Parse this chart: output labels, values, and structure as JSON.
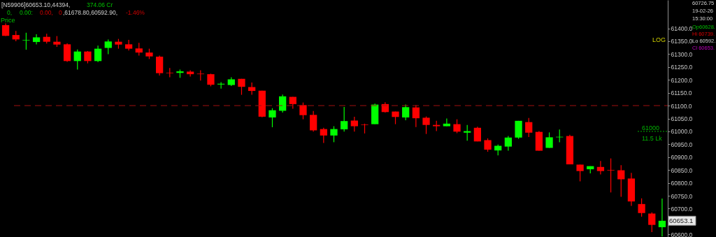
{
  "chart_data": {
    "type": "candlestick",
    "ylabel": "Price",
    "categories": [
      null,
      null,
      null,
      null,
      null,
      null,
      null,
      null,
      null,
      null,
      null,
      null,
      null,
      null,
      null,
      null,
      null,
      null,
      null,
      null,
      null,
      null,
      null,
      null,
      null,
      null,
      null,
      null,
      null,
      null,
      null,
      null,
      null,
      null,
      null,
      null,
      null,
      null,
      null,
      null,
      null,
      null,
      null,
      null,
      null,
      null,
      null,
      null,
      null,
      null,
      null,
      null,
      null,
      null,
      null,
      null,
      null,
      null,
      null,
      null,
      null,
      null,
      null,
      null,
      null
    ],
    "ohlc": [
      [
        61412,
        61419,
        61370,
        61371
      ],
      [
        61374,
        61390,
        61350,
        61357
      ],
      [
        61353,
        61383,
        61317,
        61355
      ],
      [
        61347,
        61377,
        61338,
        61365
      ],
      [
        61367,
        61379,
        61341,
        61348
      ],
      [
        61348,
        61370,
        61328,
        61337
      ],
      [
        61338,
        61342,
        61270,
        61273
      ],
      [
        61273,
        61318,
        61240,
        61310
      ],
      [
        61310,
        61312,
        61264,
        61273
      ],
      [
        61273,
        61333,
        61269,
        61321
      ],
      [
        61324,
        61357,
        61300,
        61349
      ],
      [
        61348,
        61359,
        61321,
        61337
      ],
      [
        61338,
        61355,
        61314,
        61321
      ],
      [
        61322,
        61344,
        61294,
        61306
      ],
      [
        61306,
        61321,
        61281,
        61291
      ],
      [
        61290,
        61294,
        61217,
        61226
      ],
      [
        61228,
        61246,
        61210,
        61226
      ],
      [
        61227,
        61240,
        61208,
        61233
      ],
      [
        61232,
        61237,
        61213,
        61222
      ],
      [
        61224,
        61237,
        61197,
        61222
      ],
      [
        61222,
        61224,
        61175,
        61181
      ],
      [
        61182,
        61191,
        61166,
        61185
      ],
      [
        61180,
        61210,
        61176,
        61202
      ],
      [
        61204,
        61204,
        61142,
        61173
      ],
      [
        61172,
        61190,
        61142,
        61157
      ],
      [
        61158,
        61158,
        61055,
        61057
      ],
      [
        61054,
        61090,
        61016,
        61082
      ],
      [
        61080,
        61143,
        61073,
        61136
      ],
      [
        61134,
        61134,
        61088,
        61106
      ],
      [
        61102,
        61112,
        61047,
        61063
      ],
      [
        61064,
        61079,
        60999,
        61004
      ],
      [
        61009,
        61014,
        60955,
        60984
      ],
      [
        60984,
        61020,
        60958,
        61009
      ],
      [
        61008,
        61095,
        60999,
        61040
      ],
      [
        61042,
        61057,
        60999,
        61020
      ],
      [
        61027,
        61030,
        60992,
        61025
      ],
      [
        61028,
        61108,
        61028,
        61104
      ],
      [
        61106,
        61113,
        61073,
        61075
      ],
      [
        61077,
        61077,
        61028,
        61056
      ],
      [
        61054,
        61104,
        61043,
        61094
      ],
      [
        61093,
        61102,
        61017,
        61051
      ],
      [
        61053,
        61058,
        60990,
        61025
      ],
      [
        61025,
        61041,
        61001,
        61020
      ],
      [
        61020,
        61050,
        61020,
        61030
      ],
      [
        61028,
        61047,
        60993,
        60999
      ],
      [
        60995,
        61025,
        60964,
        61001
      ],
      [
        61014,
        61018,
        60961,
        60961
      ],
      [
        60966,
        60973,
        60921,
        60929
      ],
      [
        60926,
        60949,
        60907,
        60944
      ],
      [
        60941,
        60982,
        60925,
        60976
      ],
      [
        60976,
        61041,
        60971,
        61041
      ],
      [
        61036,
        61052,
        60978,
        60995
      ],
      [
        60998,
        61001,
        60925,
        60925
      ],
      [
        60936,
        60996,
        60936,
        60977
      ],
      [
        60977,
        61007,
        60958,
        60979
      ],
      [
        60982,
        60987,
        60872,
        60872
      ],
      [
        60871,
        60871,
        60806,
        60846
      ],
      [
        60853,
        60865,
        60837,
        60865
      ],
      [
        60862,
        60885,
        60833,
        60846
      ],
      [
        60850,
        60895,
        60763,
        60848
      ],
      [
        60849,
        60869,
        60746,
        60814
      ],
      [
        60817,
        60839,
        60711,
        60728
      ],
      [
        60718,
        60740,
        60669,
        60683
      ],
      [
        60681,
        60686,
        60609,
        60637
      ],
      [
        60628,
        60739,
        60592,
        60653
      ]
    ],
    "colors": [
      "#ff0000",
      "#ff0000",
      "#00ff00",
      "#00ff00",
      "#ff0000",
      "#ff0000",
      "#ff0000",
      "#00ff00",
      "#ff0000",
      "#00ff00",
      "#00ff00",
      "#ff0000",
      "#ff0000",
      "#ff0000",
      "#ff0000",
      "#ff0000",
      "#ff0000",
      "#00ff00",
      "#ff0000",
      "#ff0000",
      "#ff0000",
      "#00ff00",
      "#00ff00",
      "#ff0000",
      "#ff0000",
      "#ff0000",
      "#00ff00",
      "#00ff00",
      "#ff0000",
      "#ff0000",
      "#ff0000",
      "#ff0000",
      "#00ff00",
      "#00ff00",
      "#ff0000",
      "#ff0000",
      "#00ff00",
      "#ff0000",
      "#ff0000",
      "#00ff00",
      "#ff0000",
      "#ff0000",
      "#ff0000",
      "#00ff00",
      "#ff0000",
      "#00ff00",
      "#ff0000",
      "#ff0000",
      "#00ff00",
      "#00ff00",
      "#00ff00",
      "#ff0000",
      "#ff0000",
      "#00ff00",
      "#00ff00",
      "#ff0000",
      "#ff0000",
      "#00ff00",
      "#ff0000",
      "#ff0000",
      "#ff0000",
      "#ff0000",
      "#ff0000",
      "#ff0000",
      "#00ff00"
    ],
    "ylim": [
      60590,
      61510
    ],
    "yticks": [
      {
        "value": 60600,
        "label": "60600.0"
      },
      {
        "value": 60650,
        "label": null
      },
      {
        "value": 60700,
        "label": "60700.0"
      },
      {
        "value": 60750,
        "label": "60750.0"
      },
      {
        "value": 60800,
        "label": "60800.0"
      },
      {
        "value": 60850,
        "label": "60850.0"
      },
      {
        "value": 60900,
        "label": "60900.0"
      },
      {
        "value": 60950,
        "label": "60950.0"
      },
      {
        "value": 61000,
        "label": "61000.0"
      },
      {
        "value": 61050,
        "label": "61050.0"
      },
      {
        "value": 61100,
        "label": "61100.0"
      },
      {
        "value": 61150,
        "label": "61150.0"
      },
      {
        "value": 61200,
        "label": "61200.0"
      },
      {
        "value": 61250,
        "label": "61250.0"
      },
      {
        "value": 61300,
        "label": "61300.0"
      },
      {
        "value": 61350,
        "label": "61350.0"
      },
      {
        "value": 61400,
        "label": "61400.0"
      }
    ],
    "tick_labels": "y",
    "grid": false,
    "ref_lines": [
      {
        "axis": "y",
        "value": 61100,
        "color": "#a01010",
        "line_style": "dashed"
      },
      {
        "axis": "y",
        "value": 61000,
        "label": "61000",
        "color": "#00b000",
        "line_style": "dotted"
      }
    ],
    "annotations": [
      "[N59906]60653.10,44394,",
      "374.06 Cr",
      "0,",
      "0.00:",
      "0.00,",
      "0",
      ",61678.80,60592.90,",
      "-1.46%",
      "LOG",
      "60726.75",
      "19-02-26",
      "15:30:00",
      "Op60628.",
      "Hi 60739.",
      "Lo 60592.",
      "Cl 60653.",
      "11.5 Lk",
      {
        "text": "60653.1",
        "y": 60653.1
      }
    ]
  }
}
